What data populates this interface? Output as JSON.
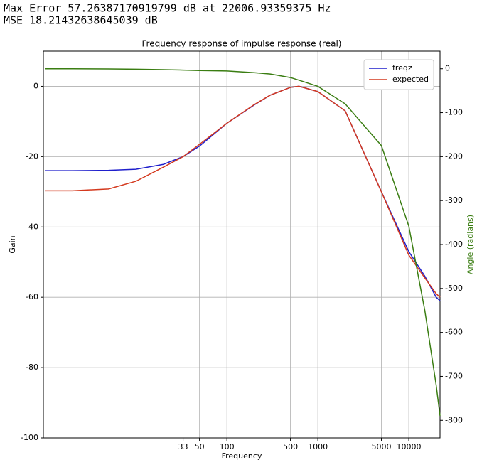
{
  "header": {
    "lines": [
      "Max Error 57.26387170919799 dB at 22006.93359375 Hz",
      "MSE 18.21432638645039 dB"
    ]
  },
  "chart_data": {
    "type": "line",
    "title": "Frequency response of impulse response (real)",
    "x_label": "Frequency",
    "y_label": "Gain",
    "y2_label": "Angle (radians)",
    "x_scale": "log",
    "grid": true,
    "legend": "upper right",
    "x": [
      1,
      2,
      5,
      10,
      20,
      33,
      50,
      100,
      200,
      300,
      500,
      620,
      1000,
      2000,
      5000,
      10000,
      15000,
      20000,
      22050
    ],
    "xlim": [
      0.96,
      22050
    ],
    "xticks": [
      33,
      50,
      100,
      500,
      1000,
      5000,
      10000
    ],
    "ylim": [
      -100,
      10
    ],
    "yticks": [
      -100,
      -80,
      -60,
      -40,
      -20,
      0
    ],
    "y2lim": [
      -840,
      40
    ],
    "y2ticks": [
      -800,
      -700,
      -600,
      -500,
      -400,
      -300,
      -200,
      -100,
      0
    ],
    "series": [
      {
        "name": "freqz",
        "color": "#1f1fcc",
        "values": [
          -24,
          -24,
          -23.9,
          -23.6,
          -22.2,
          -20,
          -17,
          -10.5,
          -5.3,
          -2.5,
          -0.3,
          0,
          -1.5,
          -7,
          -30,
          -47,
          -54,
          -60,
          -61
        ]
      },
      {
        "name": "expected",
        "color": "#d4391e",
        "values": [
          -29.7,
          -29.7,
          -29.2,
          -27,
          -23,
          -20,
          -16.5,
          -10.5,
          -5.2,
          -2.5,
          -0.3,
          0,
          -1.5,
          -7,
          -30,
          -48,
          -54.5,
          -59,
          -60
        ]
      },
      {
        "color": "#3a7d12",
        "axis": "y2",
        "values": [
          0,
          0,
          -0.5,
          -1,
          -2,
          -3,
          -4,
          -5,
          -9,
          -12,
          -20,
          -26,
          -40,
          -80,
          -175,
          -358,
          -550,
          -720,
          -790
        ]
      }
    ]
  }
}
